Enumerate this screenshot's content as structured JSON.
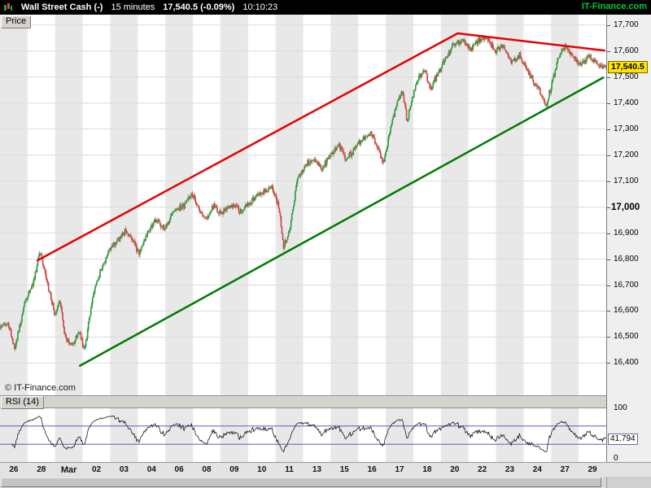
{
  "header": {
    "icon": "candlestick-chart-icon",
    "title": "Wall Street Cash (-)",
    "timeframe": "15 minutes",
    "quote": "17,540.5 (-0.09%)",
    "clock": "10:10:23",
    "brand": "IT-Finance.com"
  },
  "price_panel": {
    "tab": "Price",
    "watermark": "© IT-Finance.com",
    "y_axis": {
      "labels": [
        "17,700",
        "17,600",
        "17,500",
        "17,400",
        "17,300",
        "17,200",
        "17,100",
        "17,000",
        "16,900",
        "16,800",
        "16,700",
        "16,600",
        "16,500",
        "16,400"
      ],
      "values": [
        17700,
        17600,
        17500,
        17400,
        17300,
        17200,
        17100,
        17000,
        16900,
        16800,
        16700,
        16600,
        16500,
        16400
      ],
      "emphasized": "17,000",
      "current": {
        "label": "17,540.5",
        "value": 17540.5
      }
    }
  },
  "rsi_panel": {
    "tab": "RSI (14)",
    "period": 14,
    "y_axis": {
      "top": "100",
      "bottom": "0"
    },
    "current": {
      "label": "41.794",
      "value": 41.794
    }
  },
  "x_axis": {
    "labels": [
      "26",
      "28",
      "Mar",
      "02",
      "03",
      "04",
      "06",
      "08",
      "09",
      "10",
      "11",
      "13",
      "15",
      "16",
      "17",
      "18",
      "20",
      "22",
      "23",
      "24",
      "27",
      "29"
    ],
    "bold_label": "Mar"
  },
  "colors": {
    "up": "#2f9e41",
    "down": "#cf4a4a",
    "trend_red": "#e80000",
    "trend_green": "#007a00",
    "band": "#e8e8e8",
    "grid": "#dcdcdc",
    "current_bg": "#ffe400",
    "rsi_line": "#1a1a1a",
    "rsi_level": "#4444bb",
    "brand_green": "#00cc44"
  },
  "chart_data": {
    "type": "candlestick",
    "title": "Wall Street Cash (-) 15 minutes",
    "price_range": [
      16270,
      17740
    ],
    "bars": 730,
    "noise": 16,
    "last_close": 17540.5,
    "waypoints": [
      [
        0.0,
        16540
      ],
      [
        0.012,
        16560
      ],
      [
        0.024,
        16455
      ],
      [
        0.04,
        16630
      ],
      [
        0.054,
        16705
      ],
      [
        0.065,
        16830
      ],
      [
        0.079,
        16690
      ],
      [
        0.09,
        16590
      ],
      [
        0.098,
        16650
      ],
      [
        0.107,
        16500
      ],
      [
        0.118,
        16465
      ],
      [
        0.13,
        16520
      ],
      [
        0.139,
        16455
      ],
      [
        0.152,
        16650
      ],
      [
        0.166,
        16755
      ],
      [
        0.178,
        16825
      ],
      [
        0.192,
        16870
      ],
      [
        0.205,
        16905
      ],
      [
        0.218,
        16880
      ],
      [
        0.229,
        16815
      ],
      [
        0.243,
        16905
      ],
      [
        0.259,
        16950
      ],
      [
        0.272,
        16915
      ],
      [
        0.287,
        16985
      ],
      [
        0.302,
        17005
      ],
      [
        0.316,
        17050
      ],
      [
        0.328,
        17000
      ],
      [
        0.34,
        16955
      ],
      [
        0.352,
        17005
      ],
      [
        0.365,
        16975
      ],
      [
        0.381,
        17015
      ],
      [
        0.395,
        16985
      ],
      [
        0.408,
        17005
      ],
      [
        0.422,
        17035
      ],
      [
        0.436,
        17065
      ],
      [
        0.449,
        17075
      ],
      [
        0.46,
        17000
      ],
      [
        0.468,
        16845
      ],
      [
        0.479,
        16925
      ],
      [
        0.49,
        17105
      ],
      [
        0.503,
        17160
      ],
      [
        0.517,
        17185
      ],
      [
        0.531,
        17150
      ],
      [
        0.545,
        17200
      ],
      [
        0.56,
        17235
      ],
      [
        0.571,
        17180
      ],
      [
        0.585,
        17225
      ],
      [
        0.599,
        17265
      ],
      [
        0.612,
        17285
      ],
      [
        0.623,
        17230
      ],
      [
        0.633,
        17170
      ],
      [
        0.643,
        17285
      ],
      [
        0.653,
        17385
      ],
      [
        0.664,
        17445
      ],
      [
        0.672,
        17330
      ],
      [
        0.681,
        17425
      ],
      [
        0.691,
        17500
      ],
      [
        0.701,
        17525
      ],
      [
        0.71,
        17455
      ],
      [
        0.721,
        17505
      ],
      [
        0.735,
        17570
      ],
      [
        0.748,
        17620
      ],
      [
        0.762,
        17640
      ],
      [
        0.776,
        17605
      ],
      [
        0.79,
        17640
      ],
      [
        0.803,
        17650
      ],
      [
        0.817,
        17600
      ],
      [
        0.83,
        17620
      ],
      [
        0.844,
        17560
      ],
      [
        0.857,
        17585
      ],
      [
        0.871,
        17520
      ],
      [
        0.882,
        17480
      ],
      [
        0.892,
        17440
      ],
      [
        0.901,
        17390
      ],
      [
        0.912,
        17485
      ],
      [
        0.922,
        17580
      ],
      [
        0.933,
        17620
      ],
      [
        0.946,
        17570
      ],
      [
        0.959,
        17555
      ],
      [
        0.973,
        17580
      ],
      [
        0.986,
        17550
      ],
      [
        1.0,
        17540.5
      ]
    ],
    "trendlines": [
      {
        "name": "upper-channel-rising",
        "color": "trend_red",
        "width": 2.5,
        "points": [
          [
            0.062,
            16795
          ],
          [
            0.755,
            17668
          ]
        ]
      },
      {
        "name": "upper-resistance-falling",
        "color": "trend_red",
        "width": 2.5,
        "points": [
          [
            0.755,
            17668
          ],
          [
            0.997,
            17602
          ]
        ]
      },
      {
        "name": "lower-channel-support",
        "color": "trend_green",
        "width": 2.5,
        "points": [
          [
            0.132,
            16390
          ],
          [
            0.995,
            17498
          ]
        ]
      }
    ],
    "rsi": {
      "type": "line",
      "period": 14,
      "range": [
        0,
        100
      ],
      "levels": [
        70,
        30
      ],
      "last": 41.794
    }
  }
}
